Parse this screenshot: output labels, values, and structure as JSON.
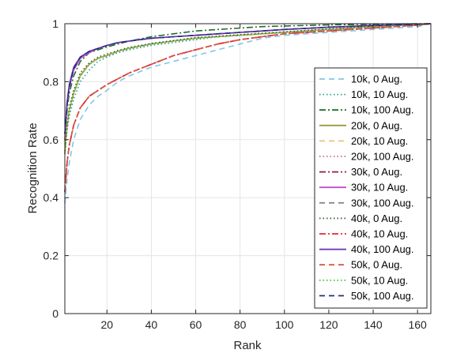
{
  "chart_data": {
    "type": "line",
    "title": "",
    "xlabel": "Rank",
    "ylabel": "Recognition Rate",
    "xlim": [
      1,
      166
    ],
    "ylim": [
      0,
      1
    ],
    "xticks": [
      20,
      40,
      60,
      80,
      100,
      120,
      140,
      160
    ],
    "yticks": [
      0,
      0.2,
      0.4,
      0.6,
      0.8,
      1
    ],
    "ytick_labels": [
      "0",
      "0.2",
      "0.4",
      "0.6",
      "0.8",
      "1"
    ],
    "grid": true,
    "legend_position": "right",
    "x": [
      1,
      2,
      3,
      5,
      8,
      12,
      16,
      20,
      25,
      30,
      40,
      50,
      60,
      70,
      80,
      90,
      100,
      110,
      120,
      130,
      140,
      150,
      160,
      166
    ],
    "series": [
      {
        "name": "10k, 0 Aug.",
        "color": "#7fc8e8",
        "style": "dashed",
        "values": [
          0.38,
          0.46,
          0.52,
          0.6,
          0.67,
          0.72,
          0.75,
          0.77,
          0.8,
          0.82,
          0.85,
          0.87,
          0.89,
          0.91,
          0.93,
          0.95,
          0.96,
          0.965,
          0.97,
          0.975,
          0.98,
          0.985,
          0.99,
          1.0
        ]
      },
      {
        "name": "10k, 10 Aug.",
        "color": "#2e9b8f",
        "style": "dotted",
        "values": [
          0.55,
          0.63,
          0.68,
          0.74,
          0.8,
          0.84,
          0.87,
          0.885,
          0.9,
          0.91,
          0.925,
          0.935,
          0.945,
          0.955,
          0.96,
          0.965,
          0.97,
          0.975,
          0.98,
          0.985,
          0.99,
          0.993,
          0.997,
          1.0
        ]
      },
      {
        "name": "10k, 100 Aug.",
        "color": "#1f6e2c",
        "style": "dashdot",
        "values": [
          0.6,
          0.7,
          0.76,
          0.82,
          0.87,
          0.9,
          0.91,
          0.92,
          0.93,
          0.94,
          0.955,
          0.965,
          0.975,
          0.98,
          0.985,
          0.99,
          0.992,
          0.994,
          0.996,
          0.997,
          0.998,
          0.999,
          1.0,
          1.0
        ]
      },
      {
        "name": "20k, 0 Aug.",
        "color": "#9c9a3c",
        "style": "solid",
        "values": [
          0.55,
          0.64,
          0.7,
          0.76,
          0.82,
          0.86,
          0.88,
          0.89,
          0.905,
          0.915,
          0.93,
          0.94,
          0.95,
          0.955,
          0.96,
          0.965,
          0.97,
          0.975,
          0.98,
          0.985,
          0.99,
          0.993,
          0.997,
          1.0
        ]
      },
      {
        "name": "20k, 10 Aug.",
        "color": "#f2c07a",
        "style": "dashed",
        "values": [
          0.56,
          0.645,
          0.705,
          0.765,
          0.825,
          0.862,
          0.882,
          0.892,
          0.906,
          0.916,
          0.931,
          0.941,
          0.951,
          0.956,
          0.961,
          0.966,
          0.971,
          0.976,
          0.981,
          0.986,
          0.991,
          0.994,
          0.997,
          1.0
        ]
      },
      {
        "name": "20k, 100 Aug.",
        "color": "#d9667a",
        "style": "dotted",
        "values": [
          0.55,
          0.64,
          0.7,
          0.76,
          0.82,
          0.86,
          0.88,
          0.89,
          0.905,
          0.915,
          0.93,
          0.94,
          0.95,
          0.955,
          0.96,
          0.965,
          0.97,
          0.975,
          0.98,
          0.985,
          0.99,
          0.993,
          0.997,
          1.0
        ]
      },
      {
        "name": "30k, 0 Aug.",
        "color": "#8c1f4a",
        "style": "dashdot",
        "values": [
          0.42,
          0.52,
          0.58,
          0.65,
          0.71,
          0.75,
          0.77,
          0.79,
          0.81,
          0.83,
          0.86,
          0.89,
          0.91,
          0.93,
          0.945,
          0.955,
          0.965,
          0.97,
          0.975,
          0.98,
          0.985,
          0.99,
          0.995,
          1.0
        ]
      },
      {
        "name": "30k, 10 Aug.",
        "color": "#c04fc8",
        "style": "solid",
        "values": [
          0.6,
          0.72,
          0.78,
          0.84,
          0.88,
          0.9,
          0.915,
          0.925,
          0.935,
          0.94,
          0.95,
          0.955,
          0.96,
          0.965,
          0.97,
          0.975,
          0.98,
          0.984,
          0.988,
          0.991,
          0.994,
          0.996,
          0.998,
          1.0
        ]
      },
      {
        "name": "30k, 100 Aug.",
        "color": "#888888",
        "style": "dashed",
        "values": [
          0.42,
          0.52,
          0.58,
          0.65,
          0.71,
          0.75,
          0.77,
          0.79,
          0.81,
          0.83,
          0.86,
          0.89,
          0.91,
          0.93,
          0.945,
          0.955,
          0.965,
          0.97,
          0.975,
          0.98,
          0.985,
          0.99,
          0.995,
          1.0
        ]
      },
      {
        "name": "40k, 0 Aug.",
        "color": "#2f5d2f",
        "style": "dotted",
        "values": [
          0.56,
          0.65,
          0.71,
          0.77,
          0.83,
          0.865,
          0.885,
          0.895,
          0.908,
          0.918,
          0.932,
          0.942,
          0.952,
          0.957,
          0.962,
          0.967,
          0.972,
          0.977,
          0.982,
          0.987,
          0.992,
          0.995,
          0.998,
          1.0
        ]
      },
      {
        "name": "40k, 10 Aug.",
        "color": "#e8233c",
        "style": "dashdot",
        "values": [
          0.42,
          0.52,
          0.58,
          0.65,
          0.71,
          0.75,
          0.77,
          0.79,
          0.81,
          0.83,
          0.86,
          0.89,
          0.91,
          0.93,
          0.945,
          0.955,
          0.965,
          0.97,
          0.975,
          0.98,
          0.985,
          0.99,
          0.995,
          1.0
        ]
      },
      {
        "name": "40k, 100 Aug.",
        "color": "#6a2db0",
        "style": "solid",
        "values": [
          0.62,
          0.73,
          0.79,
          0.85,
          0.885,
          0.905,
          0.915,
          0.925,
          0.935,
          0.94,
          0.95,
          0.955,
          0.96,
          0.965,
          0.97,
          0.975,
          0.98,
          0.984,
          0.988,
          0.991,
          0.994,
          0.996,
          0.998,
          1.0
        ]
      },
      {
        "name": "50k, 0 Aug.",
        "color": "#d9573c",
        "style": "dashed",
        "values": [
          0.42,
          0.52,
          0.58,
          0.65,
          0.71,
          0.75,
          0.77,
          0.79,
          0.81,
          0.83,
          0.86,
          0.89,
          0.91,
          0.93,
          0.945,
          0.955,
          0.965,
          0.97,
          0.975,
          0.98,
          0.985,
          0.99,
          0.995,
          1.0
        ]
      },
      {
        "name": "50k, 10 Aug.",
        "color": "#38c83a",
        "style": "dotted",
        "values": [
          0.55,
          0.64,
          0.7,
          0.76,
          0.82,
          0.86,
          0.88,
          0.89,
          0.905,
          0.915,
          0.93,
          0.94,
          0.95,
          0.955,
          0.96,
          0.965,
          0.97,
          0.975,
          0.98,
          0.985,
          0.99,
          0.993,
          0.997,
          1.0
        ]
      },
      {
        "name": "50k, 100 Aug.",
        "color": "#24307a",
        "style": "dashed",
        "values": [
          0.62,
          0.72,
          0.78,
          0.845,
          0.885,
          0.905,
          0.915,
          0.925,
          0.935,
          0.94,
          0.95,
          0.955,
          0.96,
          0.965,
          0.97,
          0.975,
          0.98,
          0.984,
          0.988,
          0.991,
          0.994,
          0.996,
          0.998,
          1.0
        ]
      }
    ]
  }
}
